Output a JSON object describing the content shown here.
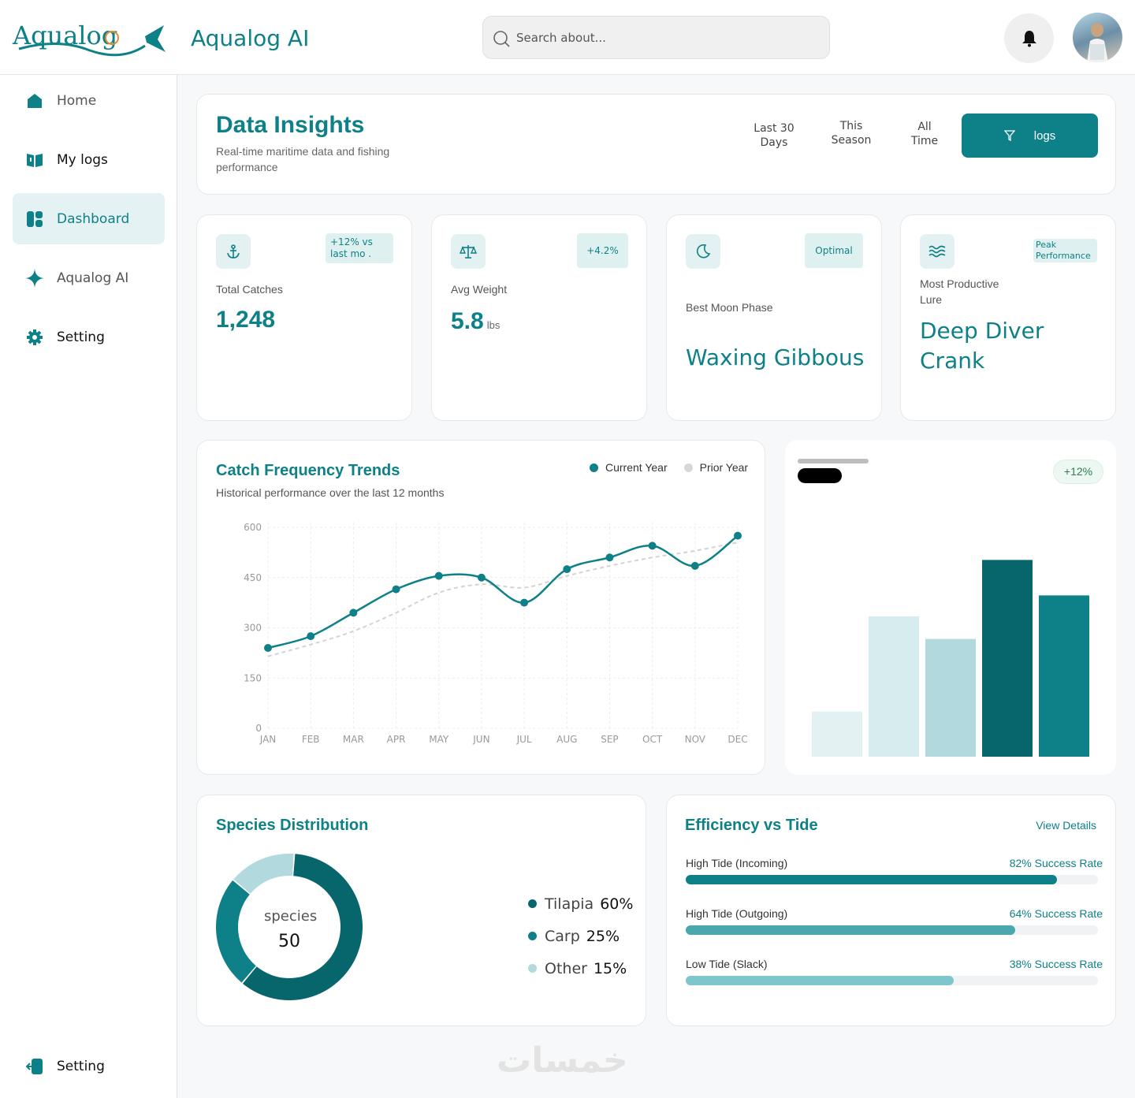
{
  "app": {
    "title": "Aqualog AI",
    "logo_text": "Aqualog"
  },
  "search": {
    "placeholder": "Search about..."
  },
  "sidebar": {
    "items": [
      {
        "label": "Home",
        "icon": "home-icon"
      },
      {
        "label": "My logs",
        "icon": "book-icon"
      },
      {
        "label": "Dashboard",
        "icon": "dashboard-icon",
        "active": true
      },
      {
        "label": "Aqualog AI",
        "icon": "sparkle-icon"
      },
      {
        "label": "Setting",
        "icon": "gear-icon"
      }
    ],
    "bottom": {
      "label": "Setting",
      "icon": "logout-icon"
    }
  },
  "header": {
    "title": "Data Insights",
    "subtitle": "Real-time maritime data and fishing performance",
    "periods": [
      "Last 30 Days",
      "This Season",
      "All Time"
    ],
    "logs_button": "logs"
  },
  "kpis": [
    {
      "label": "Total Catches",
      "value": "1,248",
      "badge": "+12% vs last mo .",
      "icon": "anchor-icon"
    },
    {
      "label": "Avg Weight",
      "value": "5.8",
      "unit": "lbs",
      "badge": "+4.2%",
      "icon": "scale-icon"
    },
    {
      "label": "Best Moon Phase",
      "value": "Waxing Gibbous",
      "badge": "Optimal",
      "icon": "moon-icon"
    },
    {
      "label": "Most Productive Lure",
      "value": "Deep Diver Crank",
      "badge": "Peak Performance",
      "icon": "waves-icon"
    }
  ],
  "colors": {
    "accent": "#0e8087",
    "dark": "#06666c",
    "light": "#e3f1f2",
    "mid": "#b2d9dd",
    "pale": "#dff0f1"
  },
  "chart_data": [
    {
      "type": "line",
      "title": "Catch Frequency Trends",
      "subtitle": "Historical performance over the last 12 months",
      "categories": [
        "JAN",
        "FEB",
        "MAR",
        "APR",
        "MAY",
        "JUN",
        "JUL",
        "AUG",
        "SEP",
        "OCT",
        "NOV",
        "DEC"
      ],
      "series": [
        {
          "name": "Current Year",
          "values": [
            240,
            275,
            345,
            415,
            455,
            450,
            375,
            475,
            510,
            545,
            485,
            575
          ]
        },
        {
          "name": "Prior Year",
          "values": [
            215,
            250,
            290,
            345,
            405,
            430,
            420,
            455,
            485,
            510,
            530,
            555
          ]
        }
      ],
      "yticks": [
        0,
        150,
        300,
        450,
        600
      ],
      "ylim": [
        0,
        600
      ],
      "legend": "top-right"
    },
    {
      "type": "bar",
      "title": "",
      "badge": "+12%",
      "values": [
        28,
        87,
        73,
        122,
        100
      ],
      "ylim": [
        0,
        130
      ]
    },
    {
      "type": "pie",
      "title": "Species Distribution",
      "center_label": "species",
      "center_value": "50",
      "slices": [
        {
          "name": "Tilapia",
          "value": 60,
          "label": "60%"
        },
        {
          "name": "Carp",
          "value": 25,
          "label": "25%"
        },
        {
          "name": "Other",
          "value": 15,
          "label": "15%"
        }
      ]
    }
  ],
  "tide": {
    "title": "Efficiency vs Tide",
    "link": "View Details",
    "rows": [
      {
        "name": "High Tide (Incoming)",
        "rate": "82% Success Rate",
        "value": 82,
        "pct": 90
      },
      {
        "name": "High Tide (Outgoing)",
        "rate": "64% Success Rate",
        "value": 64,
        "pct": 80
      },
      {
        "name": "Low Tide (Slack)",
        "rate": "38% Success Rate",
        "value": 38,
        "pct": 65
      }
    ]
  },
  "watermark": "خمسات"
}
